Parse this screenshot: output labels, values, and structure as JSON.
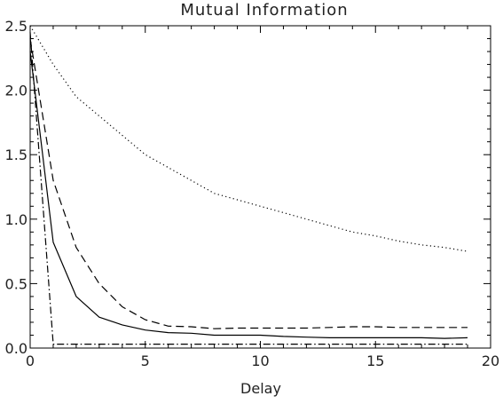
{
  "chart_data": {
    "type": "line",
    "title": "Mutual Information",
    "xlabel": "Delay",
    "ylabel": "",
    "xlim": [
      0,
      20
    ],
    "ylim": [
      0,
      2.5
    ],
    "xticks": [
      0,
      5,
      10,
      15,
      20
    ],
    "xtick_labels": [
      "0",
      "5",
      "10",
      "15",
      "20"
    ],
    "yticks": [
      0.0,
      0.5,
      1.0,
      1.5,
      2.0,
      2.5
    ],
    "ytick_labels": [
      "0.0",
      "0.5",
      "1.0",
      "1.5",
      "2.0",
      "2.5"
    ],
    "grid": false,
    "legend": "none",
    "x": [
      0,
      1,
      2,
      3,
      4,
      5,
      6,
      7,
      8,
      9,
      10,
      11,
      12,
      13,
      14,
      15,
      16,
      17,
      18,
      19
    ],
    "series": [
      {
        "style": "solid",
        "color": "#000000",
        "values": [
          2.3,
          0.82,
          0.4,
          0.24,
          0.18,
          0.14,
          0.12,
          0.115,
          0.1,
          0.1,
          0.1,
          0.09,
          0.085,
          0.08,
          0.08,
          0.08,
          0.08,
          0.08,
          0.075,
          0.08
        ]
      },
      {
        "style": "dashed",
        "color": "#000000",
        "values": [
          2.4,
          1.3,
          0.78,
          0.5,
          0.32,
          0.22,
          0.17,
          0.165,
          0.15,
          0.155,
          0.155,
          0.155,
          0.155,
          0.16,
          0.165,
          0.165,
          0.16,
          0.16,
          0.16,
          0.16
        ]
      },
      {
        "style": "dotted",
        "color": "#000000",
        "values": [
          2.5,
          2.2,
          1.95,
          1.8,
          1.65,
          1.5,
          1.4,
          1.3,
          1.2,
          1.15,
          1.1,
          1.05,
          1.0,
          0.95,
          0.9,
          0.87,
          0.83,
          0.8,
          0.78,
          0.75
        ]
      },
      {
        "style": "dashdot",
        "color": "#000000",
        "values": [
          2.45,
          0.03,
          0.03,
          0.03,
          0.03,
          0.03,
          0.03,
          0.03,
          0.03,
          0.03,
          0.03,
          0.03,
          0.03,
          0.03,
          0.03,
          0.03,
          0.03,
          0.03,
          0.03,
          0.03
        ]
      }
    ]
  }
}
